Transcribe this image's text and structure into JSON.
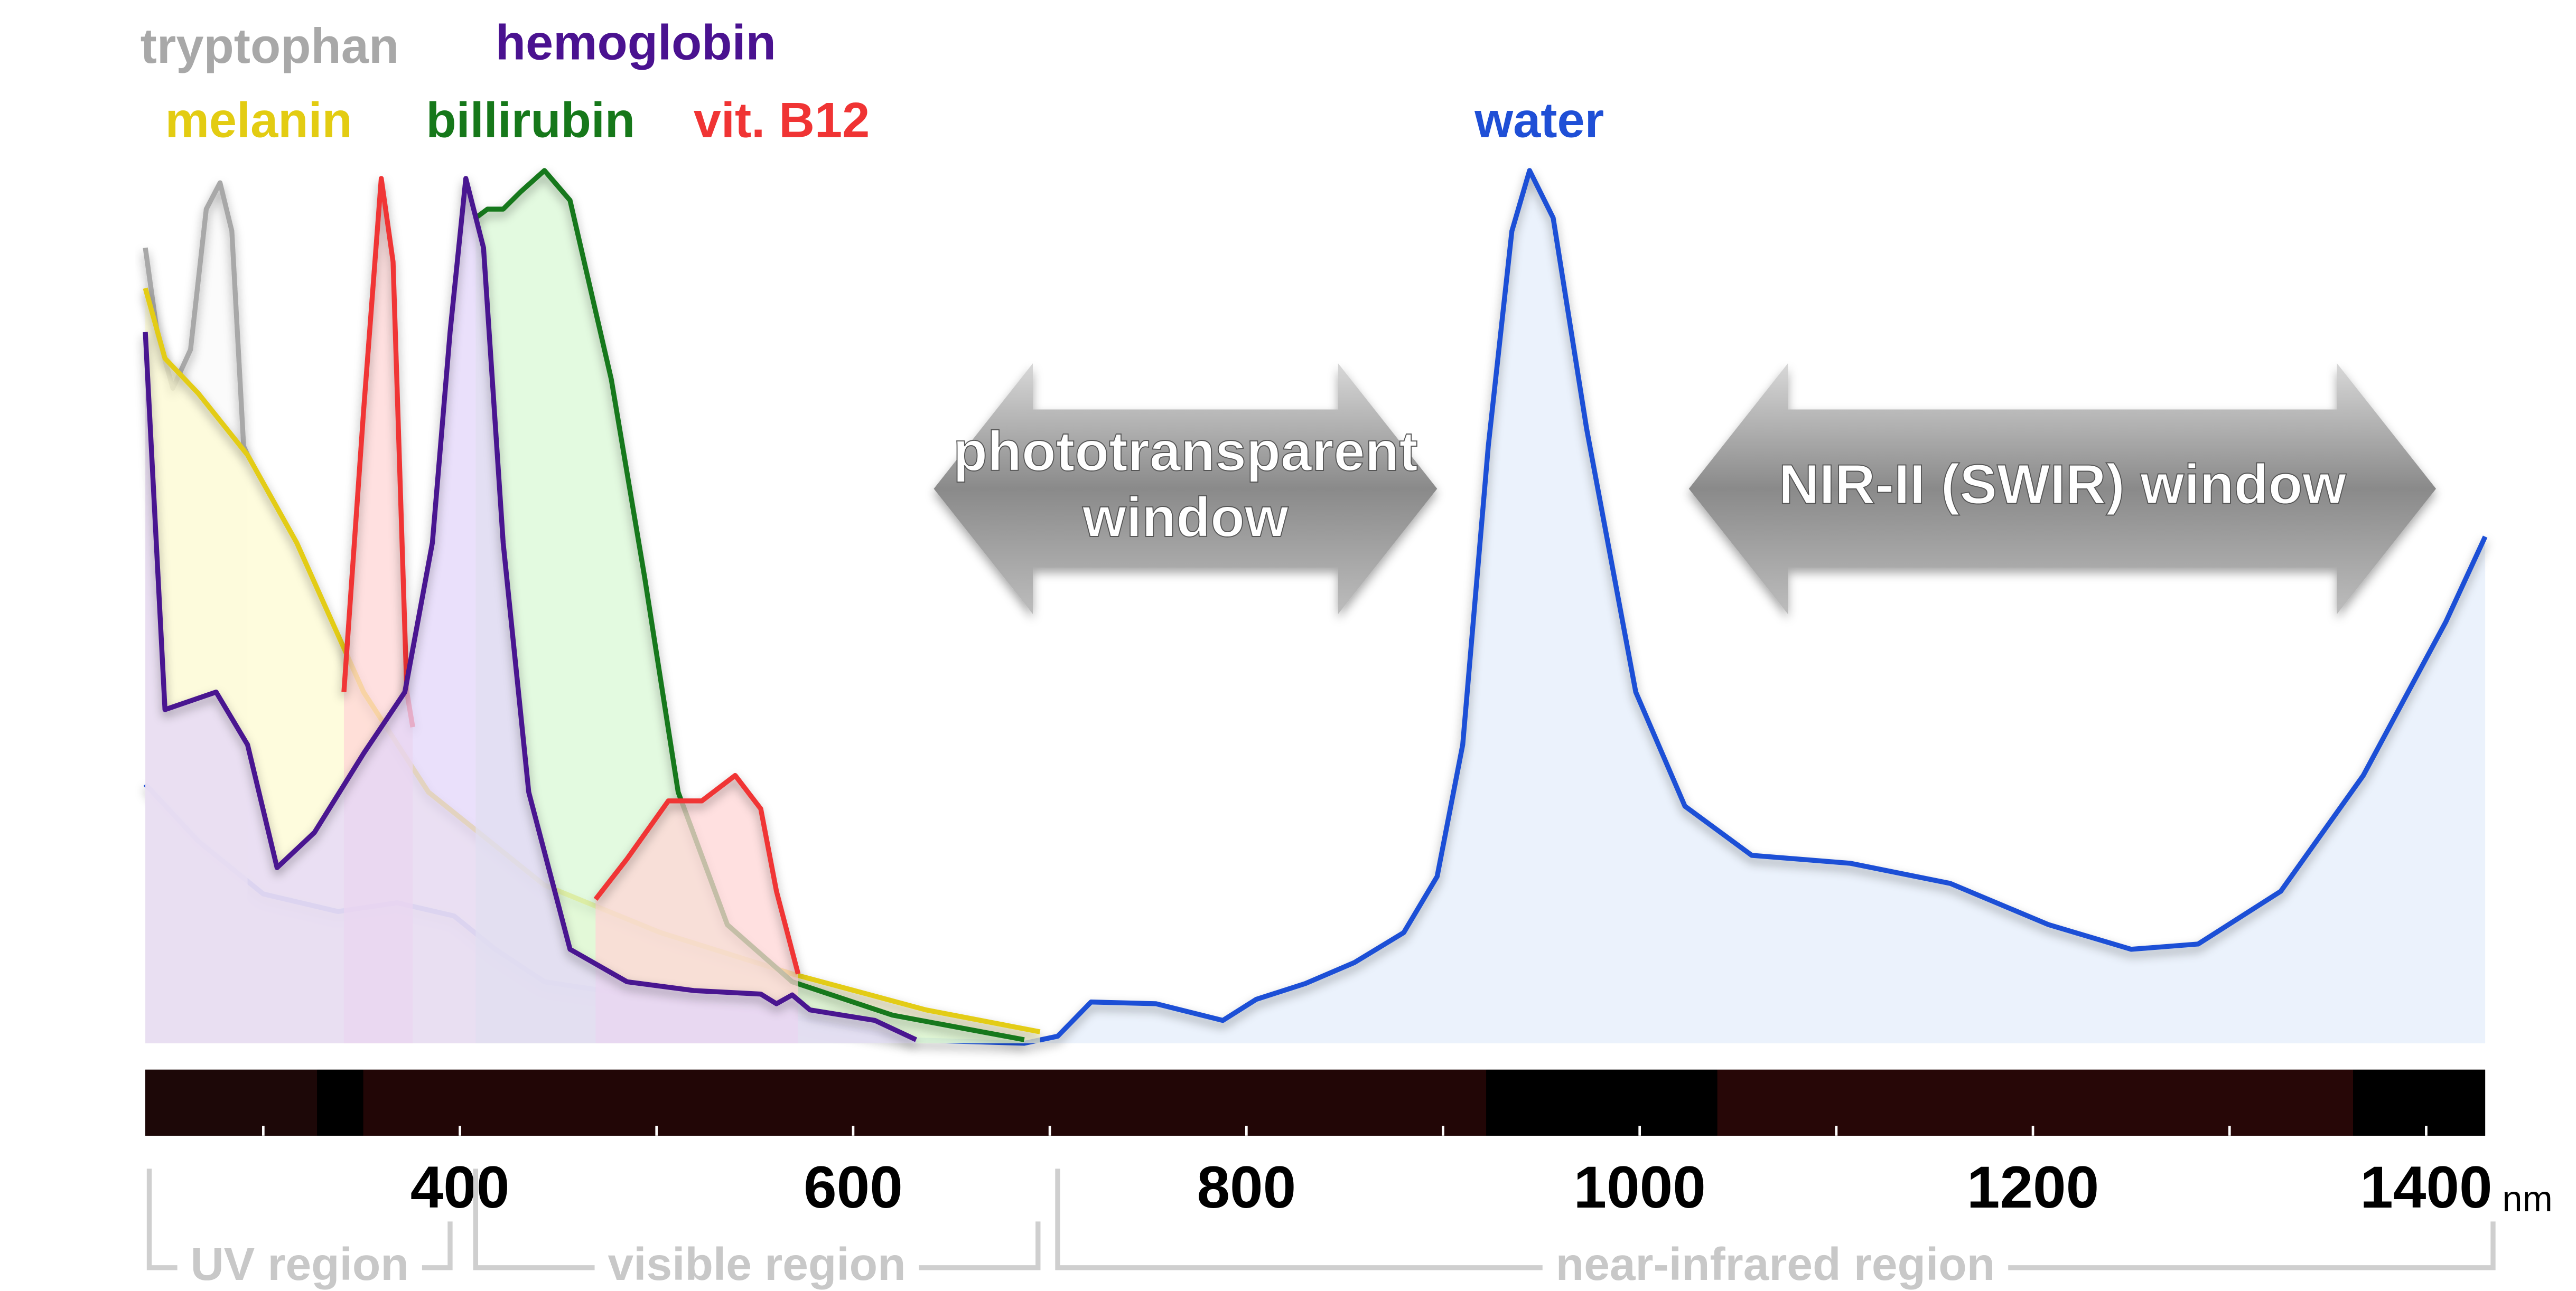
{
  "chart_data": {
    "type": "line",
    "x_unit": "nm",
    "xlim": [
      240,
      1430
    ],
    "ylim": [
      0,
      100
    ],
    "xticks": [
      400,
      600,
      800,
      1000,
      1200,
      1400
    ],
    "minor_xticks": [
      300,
      500,
      700,
      900,
      1100,
      1300
    ],
    "series": [
      {
        "name": "water",
        "color": "#1f4fd6",
        "fill": "#e4edfb",
        "x": [
          240,
          267,
          300,
          338,
          368,
          397,
          418,
          443,
          502,
          569,
          628,
          687,
          704,
          721,
          754,
          788,
          805,
          830,
          855,
          880,
          897,
          910,
          923,
          935,
          944,
          956,
          973,
          998,
          1023,
          1057,
          1107,
          1158,
          1208,
          1250,
          1284,
          1326,
          1368,
          1410,
          1430
        ],
        "values": [
          29.5,
          23,
          17,
          15,
          16,
          14.5,
          10.7,
          7,
          5,
          3,
          0.4,
          0,
          0.8,
          4.7,
          4.5,
          2.6,
          5,
          6.8,
          9.2,
          12.6,
          19,
          34,
          68,
          92.5,
          99.4,
          94,
          70,
          40,
          27,
          21.4,
          20.5,
          18.2,
          13.5,
          10.7,
          11.3,
          17.3,
          30.5,
          48,
          57.7
        ]
      },
      {
        "name": "tryptophan",
        "color": "#a8a8a8",
        "fill": "#fafafa",
        "x": [
          240,
          246,
          254,
          263,
          271,
          278,
          284,
          290,
          292
        ],
        "values": [
          90.6,
          81,
          74.6,
          79,
          95,
          98,
          92.5,
          68,
          67
        ]
      },
      {
        "name": "melanin",
        "color": "#e3cc12",
        "fill": "#fdfbd2",
        "x": [
          240,
          250,
          267,
          292,
          317,
          351,
          384,
          443,
          502,
          569,
          637,
          695
        ],
        "values": [
          86,
          78,
          74,
          67,
          57,
          40,
          28.6,
          18,
          12.6,
          7.9,
          3.8,
          1.3
        ]
      },
      {
        "name": "billirubin",
        "color": "#16781a",
        "fill": "#d9f8d6",
        "x": [
          408,
          414,
          422,
          431,
          443,
          456,
          477,
          494,
          511,
          536,
          569,
          620,
          687
        ],
        "values": [
          94,
          95,
          95,
          97,
          99.4,
          96,
          75.6,
          53,
          28.6,
          13.5,
          7,
          3.2,
          0.4
        ]
      },
      {
        "name": "vit. B12",
        "color": "#f03434",
        "fill": "#ffd6d6",
        "x": [
          341,
          351,
          360,
          366,
          373,
          376,
          420,
          469,
          485,
          506,
          523,
          540,
          553,
          561,
          572
        ],
        "values": [
          40,
          72,
          98.5,
          89,
          40,
          36,
          null,
          16.4,
          21,
          27.6,
          27.6,
          30.5,
          26.7,
          17.3,
          7.9
        ]
      },
      {
        "name": "hemoglobin",
        "color": "#4a1290",
        "fill": "#e3d6fa",
        "x": [
          240,
          250,
          263,
          276,
          292,
          307,
          326,
          351,
          372,
          386,
          395,
          403,
          412,
          422,
          435,
          456,
          485,
          519,
          553,
          561,
          569,
          578,
          611,
          632
        ],
        "values": [
          81,
          38,
          39,
          40,
          34,
          20,
          24,
          33,
          40,
          57,
          81,
          98.5,
          90.6,
          57,
          28.6,
          10.7,
          7,
          6,
          5.6,
          4.5,
          5.5,
          3.8,
          2.6,
          0.4
        ]
      }
    ],
    "annotations": [
      {
        "lines": [
          "phototransparent",
          "window"
        ],
        "range": [
          641,
          897
        ]
      },
      {
        "lines": [
          "NIR-II (SWIR) window"
        ],
        "range": [
          1025,
          1405
        ]
      }
    ],
    "regions": [
      {
        "text": "UV region",
        "range": [
          242,
          395
        ]
      },
      {
        "text": "visible region",
        "range": [
          408,
          694
        ]
      },
      {
        "text": "near-infrared region",
        "range": [
          704,
          1434
        ]
      }
    ]
  }
}
